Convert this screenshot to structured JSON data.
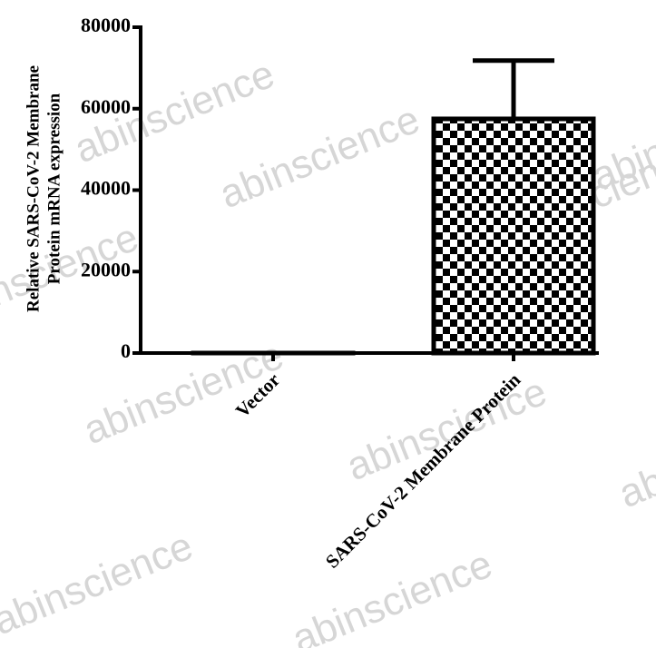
{
  "chart_data": {
    "type": "bar",
    "ylabel": [
      "Relative SARS-CoV-2 Membrane",
      "Protein mRNA expression"
    ],
    "categories": [
      "Vector",
      "SARS-CoV-2 Membrane Protein"
    ],
    "values": [
      1,
      57500
    ],
    "errors": [
      0,
      14300
    ],
    "color": "#000000",
    "ylim": [
      0,
      80000
    ],
    "yticks": [
      0,
      20000,
      40000,
      60000,
      80000
    ],
    "watermark": "abinscience"
  }
}
